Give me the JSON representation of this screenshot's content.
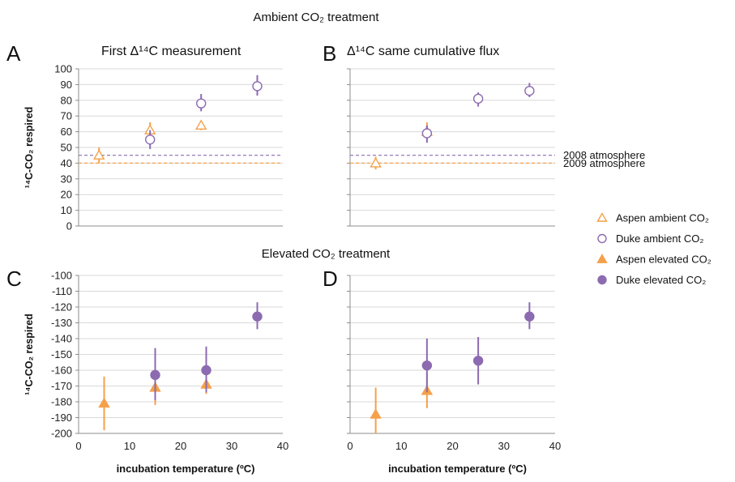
{
  "section_titles": {
    "ambient": "Ambient CO₂ treatment",
    "elevated": "Elevated CO₂ treatment"
  },
  "colors": {
    "aspen": "#f5a04a",
    "duke": "#8c6bb1",
    "ref2008": "#8c6bb1",
    "ref2009": "#f5a04a"
  },
  "legend": {
    "position": "right",
    "items": [
      {
        "label": "Aspen ambient CO₂",
        "marker": "open-triangle",
        "color": "#f5a04a"
      },
      {
        "label": "Duke ambient CO₂",
        "marker": "open-circle",
        "color": "#8c6bb1"
      },
      {
        "label": "Aspen elevated CO₂",
        "marker": "filled-triangle",
        "color": "#f5a04a"
      },
      {
        "label": "Duke elevated CO₂",
        "marker": "filled-circle",
        "color": "#8c6bb1"
      }
    ]
  },
  "chart_data": [
    {
      "panel": "A",
      "type": "scatter",
      "title": "First Δ¹⁴C measurement",
      "ylabel": "¹⁴C-CO₂ respired",
      "xlabel": "",
      "ylim": [
        0,
        100
      ],
      "yticks": [
        0,
        10,
        20,
        30,
        40,
        50,
        60,
        70,
        80,
        90,
        100
      ],
      "xlim": [
        0,
        40
      ],
      "xticks": [],
      "grid": true,
      "reference_lines": [
        {
          "y": 45,
          "color": "#8c6bb1",
          "style": "dashed"
        },
        {
          "y": 40,
          "color": "#f5a04a",
          "style": "dashed"
        }
      ],
      "series": [
        {
          "name": "Aspen ambient CO₂",
          "marker": "open-triangle",
          "color": "#f5a04a",
          "points": [
            {
              "x": 4,
              "y": 45,
              "lo": 40,
              "hi": 50
            },
            {
              "x": 14,
              "y": 61,
              "lo": 56,
              "hi": 66
            },
            {
              "x": 24,
              "y": 64,
              "lo": 61,
              "hi": 67
            }
          ]
        },
        {
          "name": "Duke ambient CO₂",
          "marker": "open-circle",
          "color": "#8c6bb1",
          "points": [
            {
              "x": 14,
              "y": 55,
              "lo": 49,
              "hi": 61
            },
            {
              "x": 24,
              "y": 78,
              "lo": 73,
              "hi": 84
            },
            {
              "x": 35,
              "y": 89,
              "lo": 83,
              "hi": 96
            }
          ]
        }
      ]
    },
    {
      "panel": "B",
      "type": "scatter",
      "title": "Δ¹⁴C same cumulative flux",
      "ylabel": "",
      "xlabel": "",
      "ylim": [
        0,
        100
      ],
      "yticks": [],
      "xlim": [
        0,
        40
      ],
      "xticks": [],
      "grid": true,
      "reference_lines": [
        {
          "y": 45,
          "color": "#8c6bb1",
          "style": "dashed",
          "label": "2008 atmosphere"
        },
        {
          "y": 40,
          "color": "#f5a04a",
          "style": "dashed",
          "label": "2009 atmosphere"
        }
      ],
      "series": [
        {
          "name": "Aspen ambient CO₂",
          "marker": "open-triangle",
          "color": "#f5a04a",
          "points": [
            {
              "x": 5,
              "y": 40,
              "lo": 36,
              "hi": 44
            },
            {
              "x": 15,
              "y": 60,
              "lo": 55,
              "hi": 66
            }
          ]
        },
        {
          "name": "Duke ambient CO₂",
          "marker": "open-circle",
          "color": "#8c6bb1",
          "points": [
            {
              "x": 15,
              "y": 59,
              "lo": 53,
              "hi": 64
            },
            {
              "x": 25,
              "y": 81,
              "lo": 76,
              "hi": 85
            },
            {
              "x": 35,
              "y": 86,
              "lo": 82,
              "hi": 91
            }
          ]
        }
      ]
    },
    {
      "panel": "C",
      "type": "scatter",
      "title": "",
      "ylabel": "¹⁴C-CO₂ respired",
      "xlabel": "incubation temperature (ºC)",
      "ylim": [
        -200,
        -100
      ],
      "yticks": [
        -200,
        -190,
        -180,
        -170,
        -160,
        -150,
        -140,
        -130,
        -120,
        -110,
        -100
      ],
      "xlim": [
        0,
        40
      ],
      "xticks": [
        0,
        10,
        20,
        30,
        40
      ],
      "grid": true,
      "series": [
        {
          "name": "Aspen elevated CO₂",
          "marker": "filled-triangle",
          "color": "#f5a04a",
          "points": [
            {
              "x": 5,
              "y": -181,
              "lo": -198,
              "hi": -164
            },
            {
              "x": 15,
              "y": -171,
              "lo": -182,
              "hi": -161
            },
            {
              "x": 25,
              "y": -169,
              "lo": -175,
              "hi": -163
            }
          ]
        },
        {
          "name": "Duke elevated CO₂",
          "marker": "filled-circle",
          "color": "#8c6bb1",
          "points": [
            {
              "x": 15,
              "y": -163,
              "lo": -179,
              "hi": -146
            },
            {
              "x": 25,
              "y": -160,
              "lo": -174,
              "hi": -145
            },
            {
              "x": 35,
              "y": -126,
              "lo": -134,
              "hi": -117
            }
          ]
        }
      ]
    },
    {
      "panel": "D",
      "type": "scatter",
      "title": "",
      "ylabel": "",
      "xlabel": "incubation temperature (ºC)",
      "ylim": [
        -200,
        -100
      ],
      "yticks": [],
      "xlim": [
        0,
        40
      ],
      "xticks": [
        0,
        10,
        20,
        30,
        40
      ],
      "grid": true,
      "series": [
        {
          "name": "Aspen elevated CO₂",
          "marker": "filled-triangle",
          "color": "#f5a04a",
          "points": [
            {
              "x": 5,
              "y": -188,
              "lo": -200,
              "hi": -171
            },
            {
              "x": 15,
              "y": -173,
              "lo": -184,
              "hi": -162
            }
          ]
        },
        {
          "name": "Duke elevated CO₂",
          "marker": "filled-circle",
          "color": "#8c6bb1",
          "points": [
            {
              "x": 15,
              "y": -157,
              "lo": -174,
              "hi": -140
            },
            {
              "x": 25,
              "y": -154,
              "lo": -169,
              "hi": -139
            },
            {
              "x": 35,
              "y": -126,
              "lo": -134,
              "hi": -117
            }
          ]
        }
      ]
    }
  ]
}
